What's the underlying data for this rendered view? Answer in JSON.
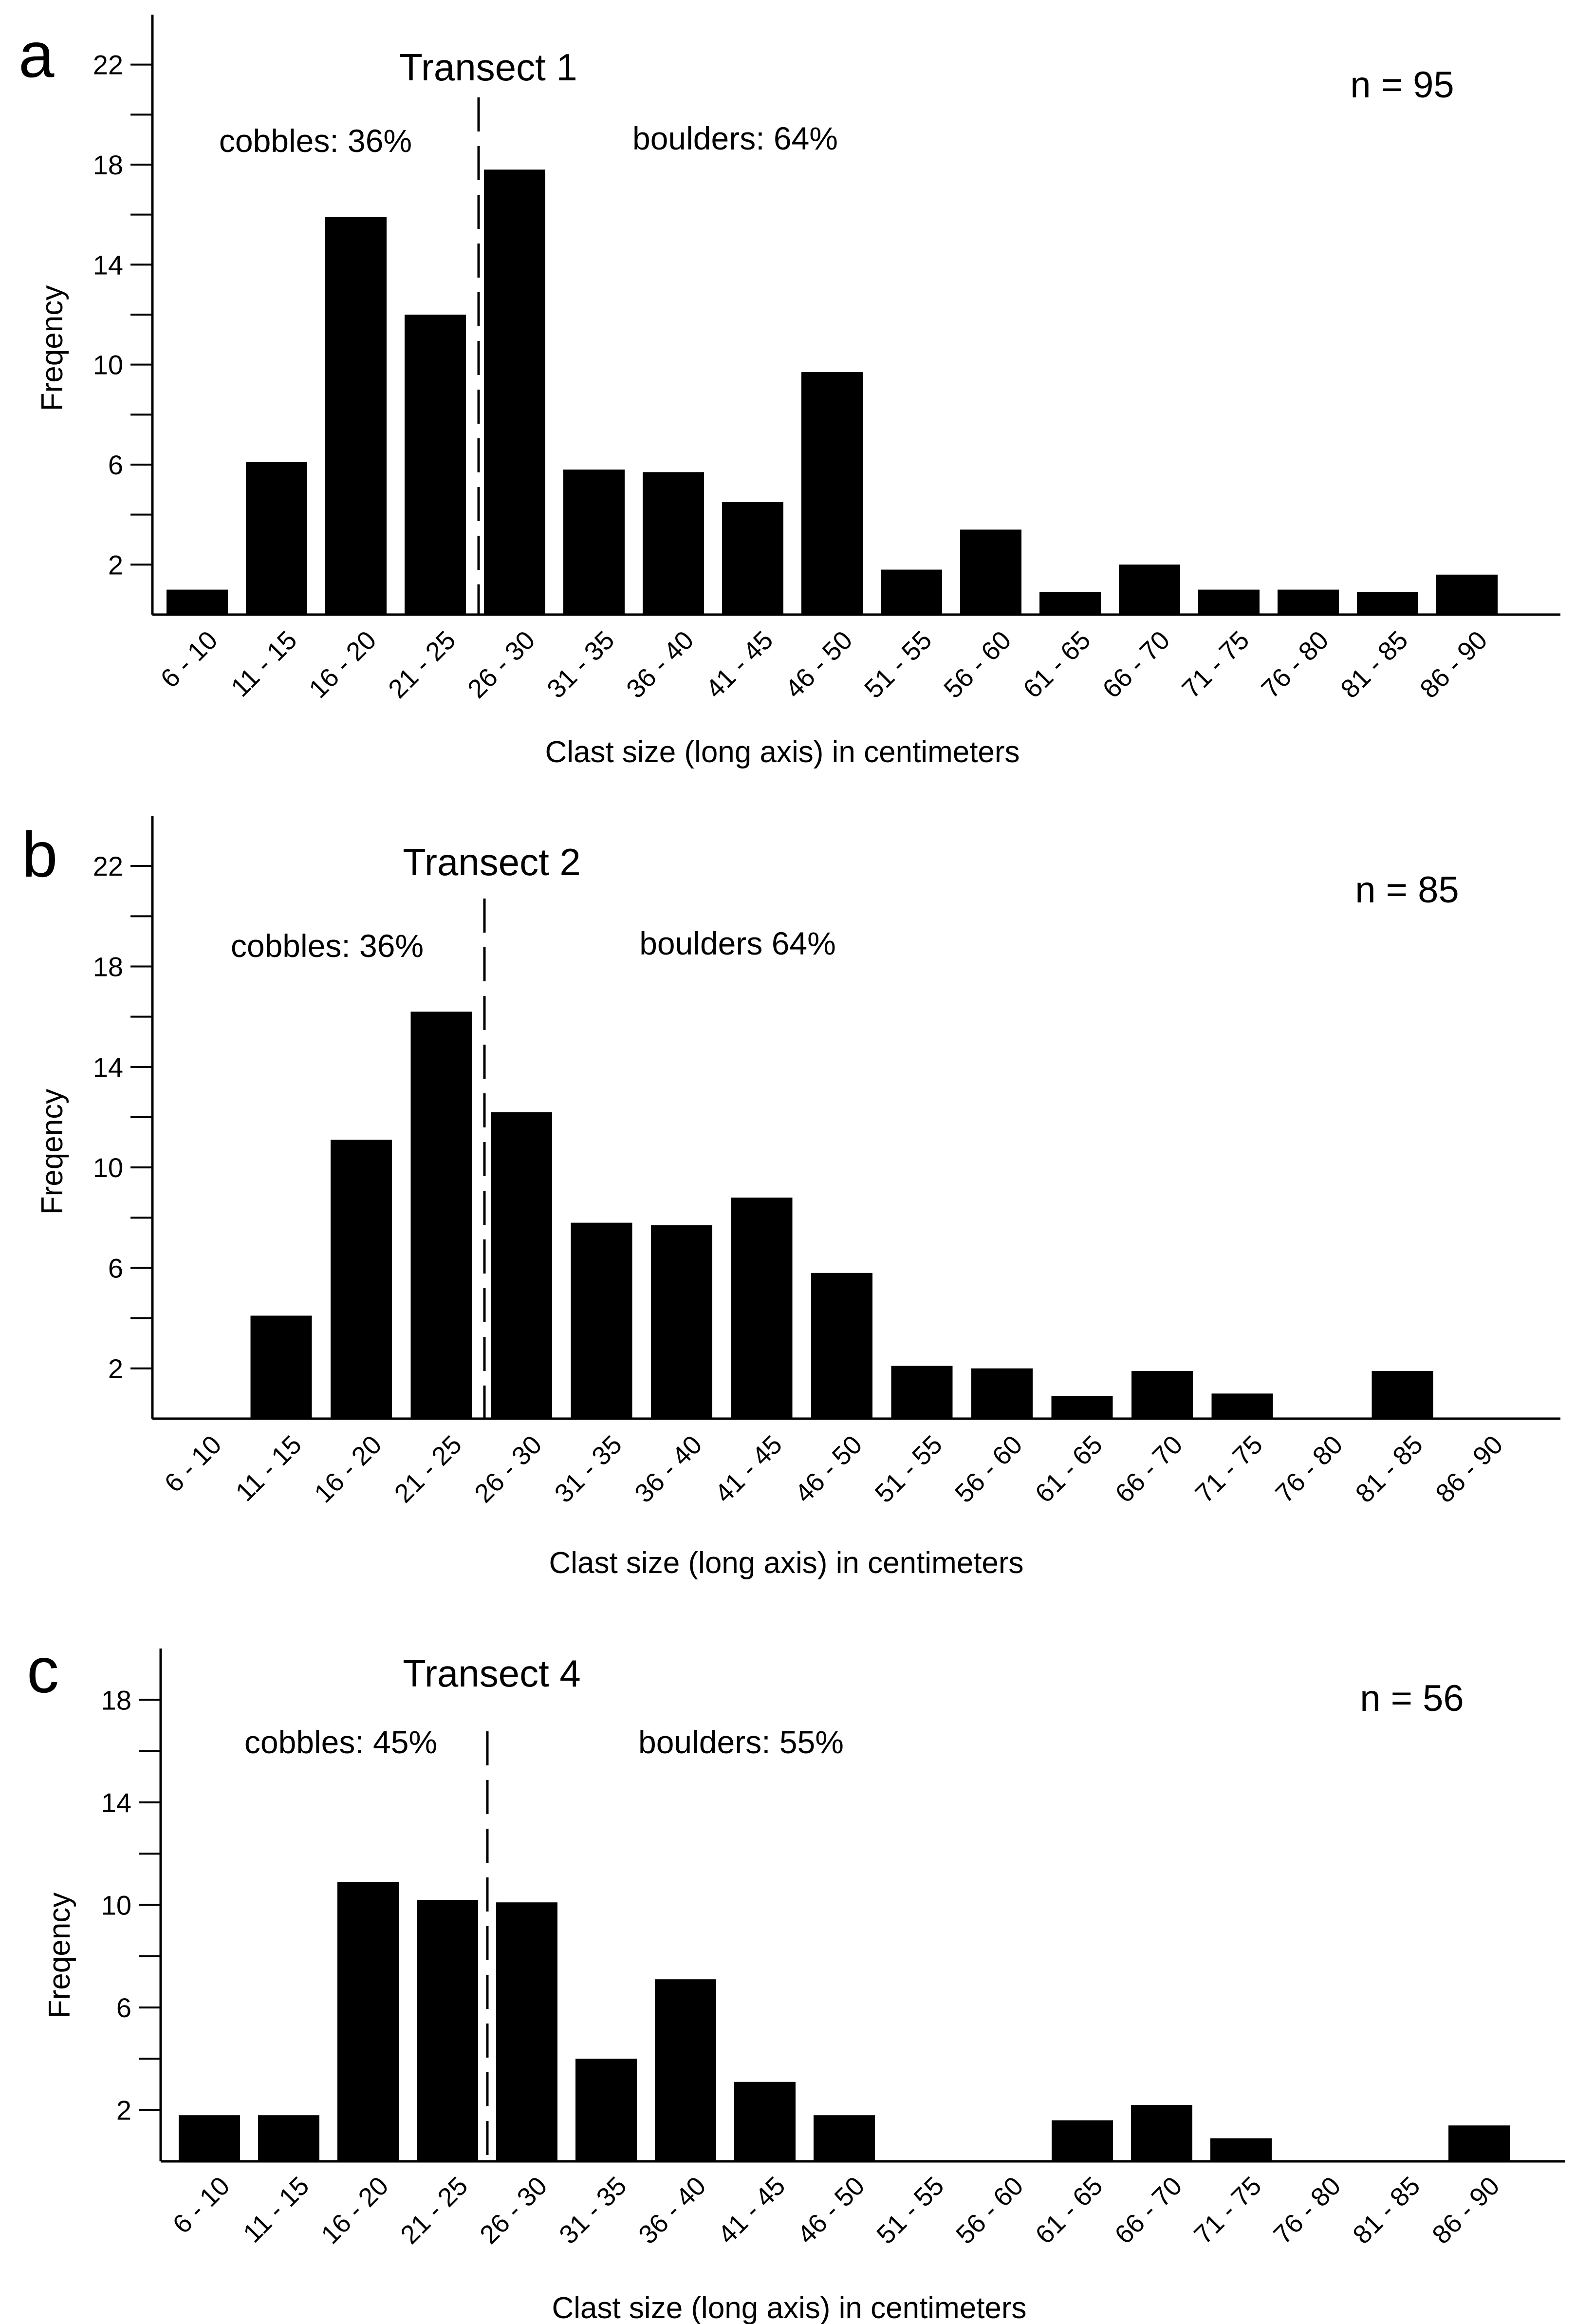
{
  "figure": {
    "colors": {
      "bar": "#000000",
      "axis": "#000000",
      "background": "#ffffff"
    }
  },
  "chart_data": [
    {
      "type": "bar",
      "panel_label": "a",
      "title": "Transect 1",
      "n_label": "n = 95",
      "xlabel": "Clast size (long axis) in centimeters",
      "ylabel": "Freqency",
      "ylim": [
        0,
        24
      ],
      "yticks": [
        2,
        6,
        10,
        14,
        18,
        22
      ],
      "yticks_minor": [
        4,
        8,
        12,
        16,
        20
      ],
      "categories": [
        "6 - 10",
        "11 - 15",
        "16 - 20",
        "21 - 25",
        "26 - 30",
        "31 - 35",
        "36 - 40",
        "41 - 45",
        "46 - 50",
        "51 - 55",
        "56 - 60",
        "61 - 65",
        "66 - 70",
        "71 - 75",
        "76 - 80",
        "81 - 85",
        "86 - 90"
      ],
      "values": [
        1,
        6.1,
        15.9,
        12,
        17.8,
        5.8,
        5.7,
        4.5,
        9.7,
        1.8,
        3.4,
        0.9,
        2,
        1,
        1,
        0.9,
        1.6
      ],
      "divider": {
        "after_category": "21 - 25"
      },
      "left_annotation": "cobbles: 36%",
      "right_annotation": "boulders: 64%"
    },
    {
      "type": "bar",
      "panel_label": "b",
      "title": "Transect 2",
      "n_label": "n = 85",
      "xlabel": "Clast size (long axis) in centimeters",
      "ylabel": "Freqency",
      "ylim": [
        0,
        24
      ],
      "yticks": [
        2,
        6,
        10,
        14,
        18,
        22
      ],
      "yticks_minor": [
        4,
        8,
        12,
        16,
        20
      ],
      "categories": [
        "6 - 10",
        "11 - 15",
        "16 - 20",
        "21 - 25",
        "26 - 30",
        "31 - 35",
        "36 - 40",
        "41 - 45",
        "46 - 50",
        "51 - 55",
        "56 - 60",
        "61 - 65",
        "66 - 70",
        "71 - 75",
        "76 - 80",
        "81 - 85",
        "86 - 90"
      ],
      "values": [
        0,
        4.1,
        11.1,
        16.2,
        12.2,
        7.8,
        7.7,
        8.8,
        5.8,
        2.1,
        2,
        0.9,
        1.9,
        1,
        0,
        1.9,
        0
      ],
      "divider": {
        "after_category": "21 - 25"
      },
      "left_annotation": "cobbles: 36%",
      "right_annotation": "boulders 64%"
    },
    {
      "type": "bar",
      "panel_label": "c",
      "title": "Transect 4",
      "n_label": "n = 56",
      "xlabel": "Clast size (long axis) in centimeters",
      "ylabel": "Freqency",
      "ylim": [
        0,
        20
      ],
      "yticks": [
        2,
        6,
        10,
        14,
        18
      ],
      "yticks_minor": [
        4,
        8,
        12,
        16
      ],
      "categories": [
        "6 - 10",
        "11 - 15",
        "16 - 20",
        "21 - 25",
        "26 - 30",
        "31 - 35",
        "36 - 40",
        "41 - 45",
        "46 - 50",
        "51 - 55",
        "56 - 60",
        "61 - 65",
        "66 - 70",
        "71 - 75",
        "76 - 80",
        "81 - 85",
        "86 - 90"
      ],
      "values": [
        1.8,
        1.8,
        10.9,
        10.2,
        10.1,
        4,
        7.1,
        3.1,
        1.8,
        0,
        0,
        1.6,
        2.2,
        0.9,
        0,
        0,
        1.4
      ],
      "divider": {
        "after_category": "21 - 25"
      },
      "left_annotation": "cobbles: 45%",
      "right_annotation": "boulders: 55%"
    }
  ]
}
